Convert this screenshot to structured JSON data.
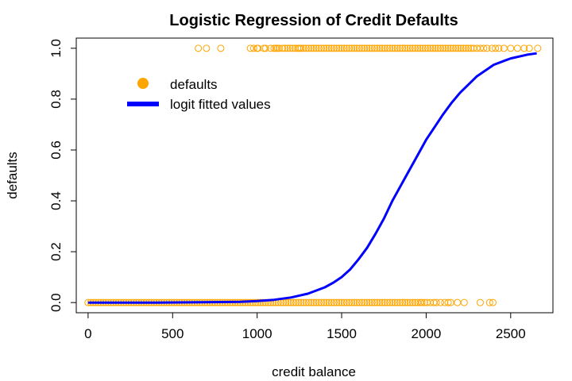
{
  "chart_data": {
    "type": "scatter",
    "title": "Logistic Regression of Credit Defaults",
    "xlabel": "credit balance",
    "ylabel": "defaults",
    "xlim": [
      -70,
      2750
    ],
    "ylim": [
      -0.04,
      1.04
    ],
    "x_ticks": [
      0,
      500,
      1000,
      1500,
      2000,
      2500
    ],
    "y_ticks": [
      0.0,
      0.2,
      0.4,
      0.6,
      0.8,
      1.0
    ],
    "x_tick_labels": [
      "0",
      "500",
      "1000",
      "1500",
      "2000",
      "2500"
    ],
    "y_tick_labels": [
      "0.0",
      "0.2",
      "0.4",
      "0.6",
      "0.8",
      "1.0"
    ],
    "grid": false,
    "legend_position": "top-left",
    "colors": {
      "points": "#FFA500",
      "line": "#0000FF",
      "axis": "#000000"
    },
    "series": [
      {
        "name": "defaults",
        "kind": "points",
        "default_balances": [
          652,
          700,
          785,
          960,
          980,
          1000,
          1005,
          1040,
          1050,
          1080,
          1100,
          1110,
          1120,
          1130,
          1150,
          1165,
          1180,
          1195,
          1210,
          1225,
          1240,
          1250,
          1260,
          1275,
          1290,
          1305,
          1320,
          1335,
          1350,
          1365,
          1380,
          1395,
          1410,
          1425,
          1440,
          1455,
          1470,
          1485,
          1500,
          1515,
          1530,
          1545,
          1560,
          1575,
          1590,
          1605,
          1620,
          1635,
          1650,
          1665,
          1680,
          1695,
          1710,
          1725,
          1740,
          1755,
          1770,
          1785,
          1800,
          1815,
          1830,
          1845,
          1860,
          1875,
          1890,
          1905,
          1920,
          1935,
          1950,
          1965,
          1980,
          1995,
          2010,
          2025,
          2040,
          2055,
          2070,
          2085,
          2100,
          2115,
          2130,
          2145,
          2160,
          2175,
          2190,
          2205,
          2220,
          2235,
          2250,
          2265,
          2280,
          2300,
          2320,
          2340,
          2360,
          2390,
          2410,
          2430,
          2460,
          2500,
          2540,
          2580,
          2610,
          2660
        ],
        "non_default_balances": [
          0,
          15,
          30,
          45,
          60,
          75,
          90,
          105,
          120,
          135,
          150,
          165,
          180,
          195,
          210,
          225,
          240,
          255,
          270,
          285,
          300,
          315,
          330,
          345,
          360,
          375,
          390,
          405,
          420,
          435,
          450,
          465,
          480,
          495,
          510,
          525,
          540,
          555,
          570,
          585,
          600,
          615,
          630,
          645,
          660,
          675,
          690,
          705,
          720,
          735,
          750,
          765,
          780,
          795,
          810,
          825,
          840,
          855,
          870,
          885,
          900,
          915,
          930,
          945,
          960,
          975,
          990,
          1005,
          1020,
          1035,
          1050,
          1065,
          1080,
          1095,
          1110,
          1125,
          1140,
          1155,
          1170,
          1185,
          1200,
          1215,
          1230,
          1245,
          1260,
          1275,
          1290,
          1305,
          1320,
          1335,
          1350,
          1365,
          1380,
          1395,
          1410,
          1425,
          1440,
          1455,
          1470,
          1485,
          1500,
          1515,
          1530,
          1545,
          1560,
          1575,
          1590,
          1605,
          1620,
          1635,
          1650,
          1665,
          1680,
          1695,
          1710,
          1725,
          1740,
          1755,
          1770,
          1785,
          1800,
          1815,
          1830,
          1845,
          1860,
          1875,
          1890,
          1905,
          1920,
          1935,
          1950,
          1965,
          1975,
          1990,
          2005,
          2025,
          2045,
          2060,
          2085,
          2110,
          2130,
          2145,
          2185,
          2225,
          2320,
          2375,
          2395
        ]
      },
      {
        "name": "logit fitted values",
        "kind": "line",
        "x": [
          0,
          200,
          400,
          600,
          800,
          900,
          1000,
          1100,
          1200,
          1300,
          1400,
          1450,
          1500,
          1550,
          1600,
          1650,
          1700,
          1750,
          1800,
          1850,
          1900,
          1950,
          2000,
          2050,
          2100,
          2150,
          2200,
          2300,
          2400,
          2500,
          2600,
          2654
        ],
        "y": [
          0.0,
          0.0,
          0.0,
          0.001,
          0.002,
          0.003,
          0.006,
          0.011,
          0.02,
          0.035,
          0.06,
          0.078,
          0.1,
          0.13,
          0.17,
          0.215,
          0.27,
          0.33,
          0.4,
          0.46,
          0.52,
          0.58,
          0.64,
          0.69,
          0.74,
          0.785,
          0.825,
          0.89,
          0.935,
          0.96,
          0.975,
          0.98
        ]
      }
    ]
  }
}
